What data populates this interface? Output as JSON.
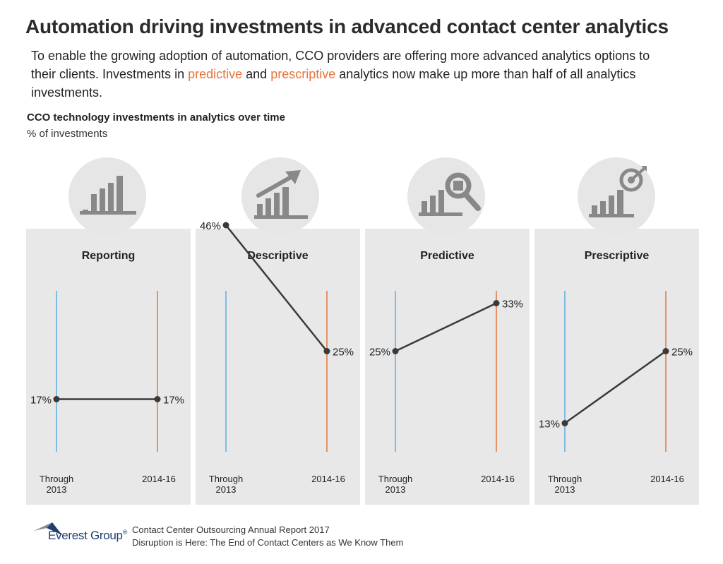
{
  "title": "Automation driving investments in advanced contact center analytics",
  "intro": {
    "part1": "To enable the growing adoption of automation, CCO providers are offering more advanced analytics options to their clients. Investments in ",
    "hl1": "predictive",
    "part2": " and ",
    "hl2": "prescriptive",
    "part3": " analytics now make up more than half of all analytics investments."
  },
  "colors": {
    "accent_orange": "#e8733a",
    "line_blue": "#5aaee0",
    "line_orange": "#e8733a",
    "panel_bg": "#e8e8e8",
    "icon_gray": "#888888",
    "dot_dark": "#3a3a3a"
  },
  "chart_data": {
    "type": "line",
    "title": "CCO technology investments in analytics over time",
    "ylabel": "% of investments",
    "categories": [
      "Through 2013",
      "2014-16"
    ],
    "category_labels": [
      [
        "Through",
        "2013"
      ],
      [
        "2014-16"
      ]
    ],
    "ylim": [
      0,
      60
    ],
    "series": [
      {
        "name": "Reporting",
        "icon": "bar-chart-icon",
        "values": [
          17,
          17
        ],
        "labels": [
          "17%",
          "17%"
        ]
      },
      {
        "name": "Descriptive",
        "icon": "trend-up-chart-icon",
        "values": [
          46,
          25
        ],
        "labels": [
          "46%",
          "25%"
        ]
      },
      {
        "name": "Predictive",
        "icon": "magnifier-chart-icon",
        "values": [
          25,
          33
        ],
        "labels": [
          "25%",
          "33%"
        ]
      },
      {
        "name": "Prescriptive",
        "icon": "target-chart-icon",
        "values": [
          13,
          25
        ],
        "labels": [
          "13%",
          "25%"
        ]
      }
    ]
  },
  "footer": {
    "brand": "Everest Group",
    "trademark": "®",
    "line1": "Contact Center Outsourcing Annual Report 2017",
    "line2": "Disruption is Here: The End of Contact Centers as We Know Them"
  }
}
